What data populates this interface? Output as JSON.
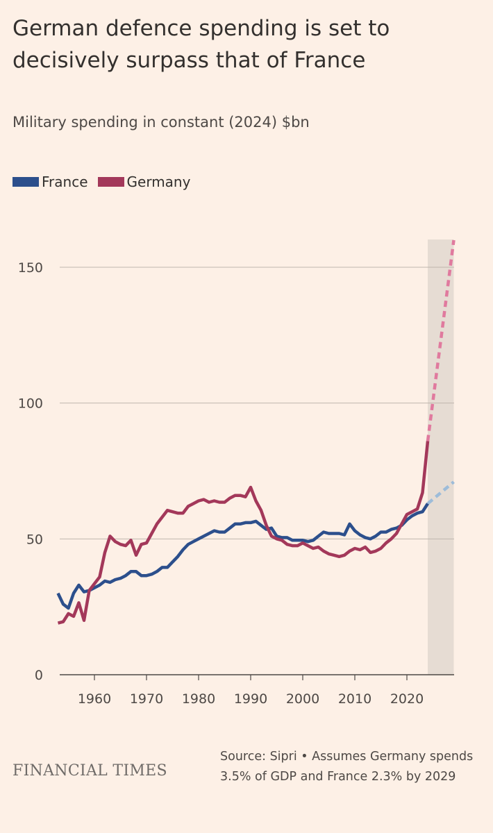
{
  "title": "German defence spending is set to decisively surpass that of France",
  "subtitle": "Military spending in constant (2024) $bn",
  "legend": [
    {
      "label": "France",
      "color": "#2c4f8c"
    },
    {
      "label": "Germany",
      "color": "#a3385a"
    }
  ],
  "footer": {
    "logo": "FINANCIAL TIMES",
    "source": "Source: Sipri • Assumes Germany spends 3.5% of GDP and France 2.3% by 2029"
  },
  "chart_data": {
    "type": "line",
    "ylim": [
      0,
      150
    ],
    "xlim": [
      1953,
      2029
    ],
    "yticks": [
      0,
      50,
      100,
      150
    ],
    "xticks": [
      1960,
      1970,
      1980,
      1990,
      2000,
      2010,
      2020
    ],
    "grid": "horizontal",
    "legend_position": "top-left",
    "shaded_region": {
      "from": 2024,
      "to": 2029,
      "color": "#e6dcd3"
    },
    "series": [
      {
        "name": "France",
        "color": "#2c4f8c",
        "projection_color": "#9dbcd9",
        "x": [
          1953,
          1954,
          1955,
          1956,
          1957,
          1958,
          1959,
          1960,
          1961,
          1962,
          1963,
          1964,
          1965,
          1966,
          1967,
          1968,
          1969,
          1970,
          1971,
          1972,
          1973,
          1974,
          1975,
          1976,
          1977,
          1978,
          1979,
          1980,
          1981,
          1982,
          1983,
          1984,
          1985,
          1986,
          1987,
          1988,
          1989,
          1990,
          1991,
          1992,
          1993,
          1994,
          1995,
          1996,
          1997,
          1998,
          1999,
          2000,
          2001,
          2002,
          2003,
          2004,
          2005,
          2006,
          2007,
          2008,
          2009,
          2010,
          2011,
          2012,
          2013,
          2014,
          2015,
          2016,
          2017,
          2018,
          2019,
          2020,
          2021,
          2022,
          2023,
          2024
        ],
        "values": [
          30,
          26,
          24.5,
          30,
          33,
          30.5,
          31,
          32,
          33,
          34.5,
          34,
          35,
          35.5,
          36.5,
          38,
          38,
          36.5,
          36.5,
          37,
          38,
          39.5,
          39.5,
          41.5,
          43.5,
          46,
          48,
          49,
          50,
          51,
          52,
          53,
          52.5,
          52.5,
          54,
          55.5,
          55.5,
          56,
          56,
          56.5,
          55,
          53.5,
          54,
          51,
          50.5,
          50.5,
          49.5,
          49.5,
          49.5,
          49,
          49.5,
          51,
          52.5,
          52,
          52,
          52,
          51.5,
          55.5,
          53,
          51.5,
          50.5,
          50,
          51,
          52.5,
          52.5,
          53.5,
          54,
          55,
          57,
          58.5,
          59.5,
          60,
          63
        ],
        "projection_x": [
          2024,
          2029
        ],
        "projection_values": [
          63,
          71
        ]
      },
      {
        "name": "Germany",
        "color": "#a3385a",
        "projection_color": "#e07a9e",
        "x": [
          1953,
          1954,
          1955,
          1956,
          1957,
          1958,
          1959,
          1960,
          1961,
          1962,
          1963,
          1964,
          1965,
          1966,
          1967,
          1968,
          1969,
          1970,
          1971,
          1972,
          1973,
          1974,
          1975,
          1976,
          1977,
          1978,
          1979,
          1980,
          1981,
          1982,
          1983,
          1984,
          1985,
          1986,
          1987,
          1988,
          1989,
          1990,
          1991,
          1992,
          1993,
          1994,
          1995,
          1996,
          1997,
          1998,
          1999,
          2000,
          2001,
          2002,
          2003,
          2004,
          2005,
          2006,
          2007,
          2008,
          2009,
          2010,
          2011,
          2012,
          2013,
          2014,
          2015,
          2016,
          2017,
          2018,
          2019,
          2020,
          2021,
          2022,
          2023,
          2024
        ],
        "values": [
          19,
          19.5,
          22.5,
          21.5,
          26.5,
          20,
          31,
          33.5,
          36,
          45,
          51,
          49,
          48,
          47.5,
          49.5,
          44,
          48,
          48.5,
          52,
          55.5,
          58,
          60.5,
          60,
          59.5,
          59.5,
          62,
          63,
          64,
          64.5,
          63.5,
          64,
          63.5,
          63.5,
          65,
          66,
          66,
          65.5,
          69,
          64,
          60.5,
          55,
          51,
          50,
          49.5,
          48,
          47.5,
          47.5,
          48.5,
          47.5,
          46.5,
          47,
          45.5,
          44.5,
          44,
          43.5,
          44,
          45.5,
          46.5,
          46,
          47,
          45,
          45.5,
          46.5,
          48.5,
          50,
          52,
          55.5,
          59,
          60,
          61,
          67,
          86
        ],
        "projection_x": [
          2024,
          2029
        ],
        "projection_values": [
          86,
          160
        ]
      }
    ]
  }
}
